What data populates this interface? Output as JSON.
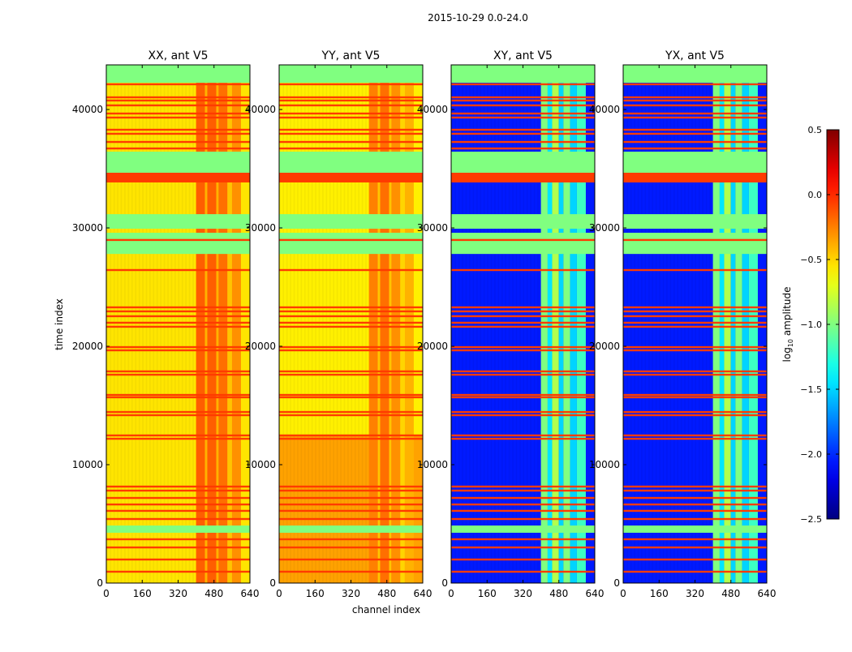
{
  "chart_data": {
    "type": "heatmap",
    "title": "2015-10-29 0.0-24.0",
    "xlabel": "channel index",
    "ylabel": "time index",
    "xlim": [
      0,
      640
    ],
    "ylim": [
      0,
      43770
    ],
    "xticks": [
      "0",
      "160",
      "320",
      "480",
      "640"
    ],
    "xtick_values": [
      0,
      160,
      320,
      480,
      640
    ],
    "yticks": [
      "0",
      "10000",
      "20000",
      "30000",
      "40000"
    ],
    "ytick_values": [
      0,
      10000,
      20000,
      30000,
      40000
    ],
    "colormap": "jet",
    "colorbar": {
      "label_prefix": "log",
      "label_sub": "10",
      "label_suffix": " amplitude",
      "range": [
        -2.5,
        0.5
      ],
      "ticks": [
        "0.5",
        "0.0",
        "−0.5",
        "−1.0",
        "−1.5",
        "−2.0",
        "−2.5"
      ],
      "tick_values": [
        0.5,
        0.0,
        -0.5,
        -1.0,
        -1.5,
        -2.0,
        -2.5
      ]
    },
    "flagged_value": -1.0,
    "flagged_time_ranges": [
      [
        42260,
        43770
      ],
      [
        34660,
        36440
      ],
      [
        29930,
        31160
      ],
      [
        27800,
        29590
      ],
      [
        4250,
        4860
      ]
    ],
    "red_band_value": -0.05,
    "red_time_ranges": [
      [
        33840,
        34660
      ]
    ],
    "red_lines": [
      42130,
      41030,
      40760,
      40350,
      39660,
      39320,
      38290,
      37950,
      37260,
      36710,
      28980,
      26440,
      23290,
      22950,
      22540,
      21990,
      21650,
      19930,
      19660,
      17880,
      17600,
      15890,
      15690,
      14450,
      14180,
      12470,
      12190,
      8150,
      7810,
      7190,
      6640,
      6100,
      5410,
      3700,
      3010,
      1990,
      960
    ],
    "panels": [
      {
        "title": "XX, ant V5",
        "base_value": -0.55,
        "base_regions": [],
        "hot_columns": [
          [
            400,
            440,
            -0.15
          ],
          [
            440,
            450,
            -0.4
          ],
          [
            450,
            490,
            -0.15
          ],
          [
            490,
            500,
            -0.4
          ],
          [
            500,
            540,
            -0.2
          ],
          [
            540,
            560,
            -0.45
          ],
          [
            560,
            600,
            -0.3
          ]
        ]
      },
      {
        "title": "YY, ant V5",
        "base_value": -0.58,
        "base_regions": [
          [
            0,
            12500,
            -0.35
          ]
        ],
        "hot_columns": [
          [
            400,
            440,
            -0.25
          ],
          [
            440,
            450,
            -0.45
          ],
          [
            450,
            490,
            -0.2
          ],
          [
            490,
            500,
            -0.45
          ],
          [
            500,
            540,
            -0.3
          ],
          [
            540,
            560,
            -0.5
          ],
          [
            560,
            600,
            -0.4
          ]
        ]
      },
      {
        "title": "XY, ant V5",
        "base_value": -2.05,
        "base_regions": [],
        "hot_columns": [
          [
            400,
            430,
            -1.0
          ],
          [
            430,
            450,
            -1.45
          ],
          [
            450,
            480,
            -0.85
          ],
          [
            480,
            500,
            -1.5
          ],
          [
            500,
            530,
            -1.0
          ],
          [
            530,
            560,
            -1.5
          ],
          [
            560,
            600,
            -1.2
          ]
        ]
      },
      {
        "title": "YX, ant V5",
        "base_value": -2.05,
        "base_regions": [],
        "hot_columns": [
          [
            400,
            430,
            -1.0
          ],
          [
            430,
            450,
            -1.45
          ],
          [
            450,
            480,
            -0.85
          ],
          [
            480,
            500,
            -1.5
          ],
          [
            500,
            530,
            -1.0
          ],
          [
            530,
            560,
            -1.5
          ],
          [
            560,
            600,
            -1.2
          ]
        ]
      }
    ]
  }
}
